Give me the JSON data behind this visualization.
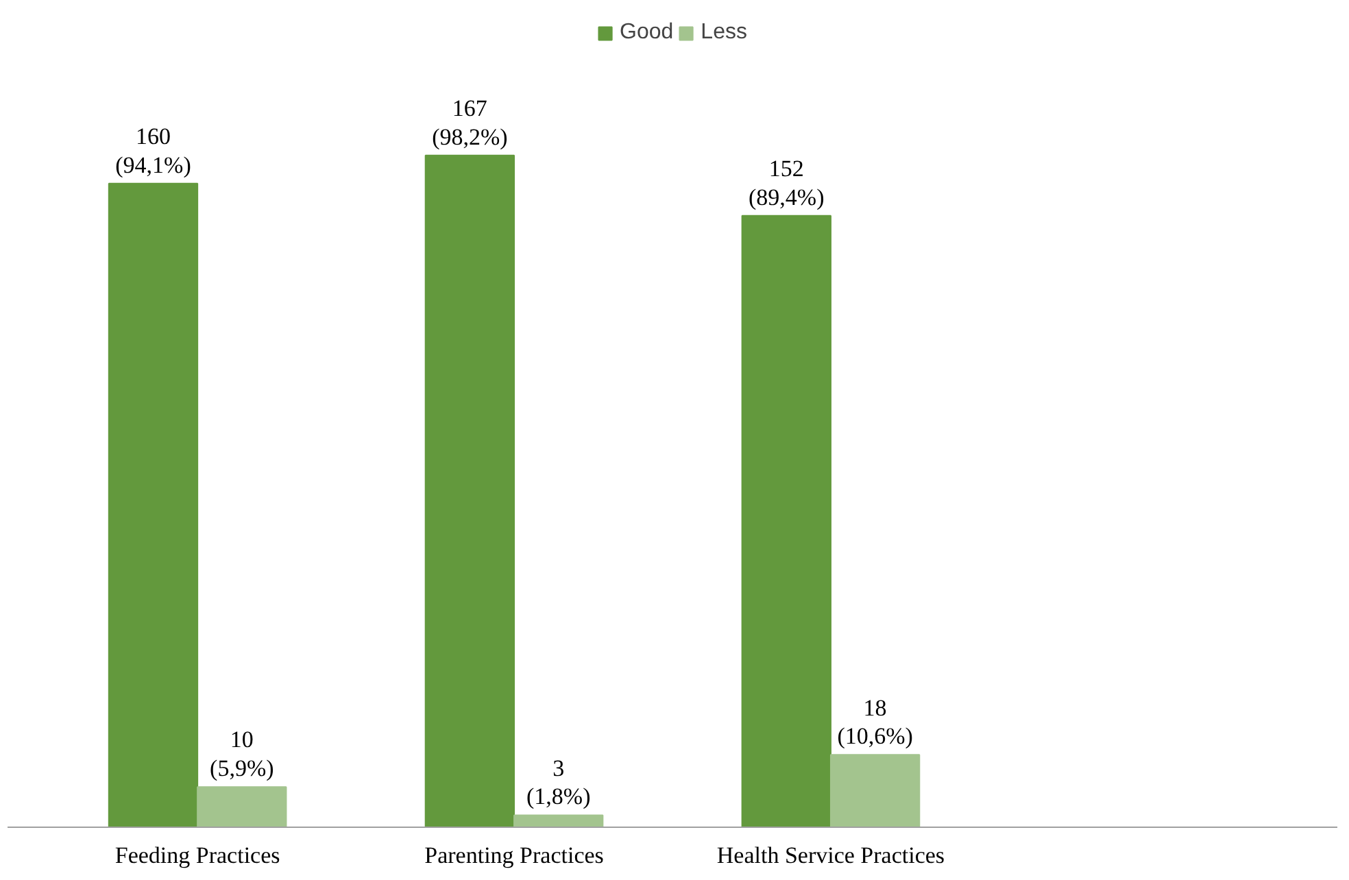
{
  "chart_data": {
    "type": "bar",
    "categories": [
      "Feeding Practices",
      "Parenting Practices",
      "Health Service Practices"
    ],
    "series": [
      {
        "name": "Good",
        "color": "#63993d",
        "values": [
          160,
          167,
          152
        ],
        "value_labels": [
          "160\n(94,1%)",
          "167\n(98,2%)",
          "152\n(89,4%)"
        ]
      },
      {
        "name": "Less",
        "color": "#a3c48e",
        "values": [
          10,
          3,
          18
        ],
        "value_labels": [
          "10\n(5,9%)",
          "3\n(1,8%)",
          "18\n(10,6%)"
        ]
      }
    ],
    "legend": "top",
    "grid": false
  }
}
